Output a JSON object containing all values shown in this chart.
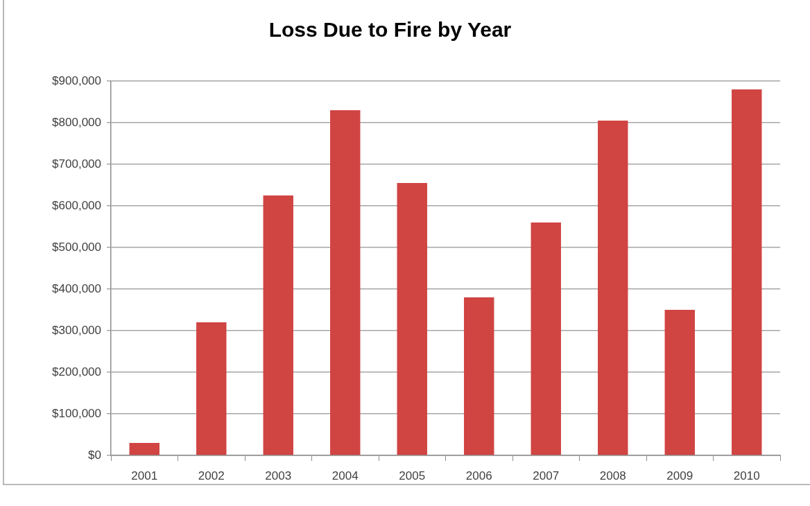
{
  "chart_data": {
    "type": "bar",
    "title": "Loss Due to Fire by Year",
    "categories": [
      "2001",
      "2002",
      "2003",
      "2004",
      "2005",
      "2006",
      "2007",
      "2008",
      "2009",
      "2010"
    ],
    "values": [
      30000,
      320000,
      625000,
      830000,
      655000,
      380000,
      560000,
      805000,
      350000,
      880000
    ],
    "color": "#d04442",
    "ylim": [
      0,
      900000
    ],
    "yticks": [
      {
        "value": 0,
        "label": "$0"
      },
      {
        "value": 100000,
        "label": "$100,000"
      },
      {
        "value": 200000,
        "label": "$200,000"
      },
      {
        "value": 300000,
        "label": "$300,000"
      },
      {
        "value": 400000,
        "label": "$400,000"
      },
      {
        "value": 500000,
        "label": "$500,000"
      },
      {
        "value": 600000,
        "label": "$600,000"
      },
      {
        "value": 700000,
        "label": "$700,000"
      },
      {
        "value": 800000,
        "label": "$800,000"
      },
      {
        "value": 900000,
        "label": "$900,000"
      }
    ],
    "grid": true
  }
}
